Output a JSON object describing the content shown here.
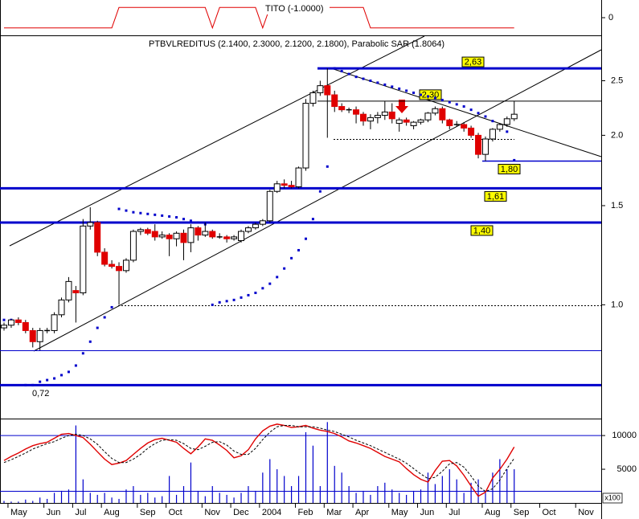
{
  "chart_data": [
    {
      "type": "line",
      "title": "TITO (-1.0000)",
      "ylim": [
        -1.5,
        1.5
      ],
      "yticks": [
        0
      ],
      "series": [
        {
          "color": "#e00000",
          "values": [
            -1,
            -1,
            -1,
            -1,
            -1,
            -1,
            -1,
            -1,
            -1,
            -1,
            -1,
            -1,
            -1,
            -1,
            -1,
            -1,
            1,
            1,
            1,
            1,
            1,
            1,
            1,
            1,
            1,
            1,
            1,
            1,
            1,
            -1,
            1,
            1,
            1,
            1,
            1,
            1,
            -1,
            1,
            1,
            1,
            1,
            1,
            1,
            1,
            1,
            1,
            1,
            1,
            1,
            1,
            1,
            -1,
            -1,
            -1,
            -1,
            -1,
            -1,
            -1,
            -1,
            -1,
            -1,
            -1,
            -1,
            -1,
            -1,
            -1,
            -1,
            -1,
            -1,
            -1,
            -1,
            -1,
            null,
            null,
            null,
            null,
            null,
            null,
            null,
            null,
            null,
            null,
            null,
            null,
            null
          ]
        }
      ]
    },
    {
      "type": "candlestick",
      "title": "PTBVLREDITUS (2.1400, 2.3000, 2.1200, 2.1800), Parabolic SAR (1.8064)",
      "log_scale": true,
      "ylim": [
        0.63,
        3.0
      ],
      "yticks": [
        2.5,
        {
          "value": 2,
          "label": "2.0"
        },
        1.5,
        {
          "value": 1,
          "label": "1.0"
        }
      ],
      "categories": [
        null,
        "May",
        null,
        null,
        null,
        null,
        "Jun",
        null,
        null,
        null,
        "Jul",
        null,
        null,
        null,
        "Aug",
        null,
        null,
        null,
        null,
        "Sep",
        null,
        null,
        null,
        "Oct",
        null,
        null,
        null,
        null,
        "Nov",
        null,
        null,
        null,
        "Dec",
        null,
        null,
        null,
        "2004",
        null,
        null,
        null,
        null,
        "Feb",
        null,
        null,
        null,
        "Mar",
        null,
        null,
        null,
        "Apr",
        null,
        null,
        null,
        null,
        "May",
        null,
        null,
        null,
        "Jun",
        null,
        null,
        null,
        "Jul",
        null,
        null,
        null,
        null,
        "Aug",
        null,
        null,
        null,
        "Sep",
        null,
        null,
        null,
        "Oct",
        null,
        null,
        null,
        null,
        "Nov",
        null,
        null,
        null,
        null
      ],
      "open": [
        0.91,
        0.92,
        0.94,
        0.93,
        0.9,
        0.86,
        0.9,
        0.9,
        0.96,
        1.02,
        1.06,
        1.05,
        1.38,
        1.4,
        1.24,
        1.18,
        1.17,
        1.15,
        1.2,
        1.35,
        1.36,
        1.35,
        1.32,
        1.33,
        1.31,
        1.34,
        1.29,
        1.37,
        1.33,
        1.35,
        1.32,
        1.32,
        1.31,
        1.3,
        1.35,
        1.37,
        1.39,
        1.41,
        1.59,
        1.64,
        1.63,
        1.62,
        1.75,
        2.28,
        2.38,
        2.45,
        2.36,
        2.25,
        2.22,
        2.22,
        2.18,
        2.12,
        2.15,
        2.17,
        2.2,
        2.1,
        2.13,
        2.08,
        2.11,
        2.13,
        2.19,
        2.23,
        2.13,
        2.09,
        2.09,
        2.06,
        2.0,
        1.85,
        1.97,
        2.05,
        2.09,
        2.14,
        null,
        null,
        null,
        null,
        null,
        null,
        null,
        null,
        null,
        null,
        null,
        null,
        null
      ],
      "high": [
        0.93,
        0.94,
        0.95,
        0.94,
        0.91,
        0.91,
        0.91,
        0.97,
        1.03,
        1.12,
        1.08,
        1.42,
        1.49,
        1.41,
        1.26,
        1.2,
        1.19,
        1.21,
        1.36,
        1.37,
        1.37,
        1.39,
        1.35,
        1.34,
        1.35,
        1.36,
        1.39,
        1.38,
        1.4,
        1.36,
        1.34,
        1.33,
        1.33,
        1.36,
        1.38,
        1.4,
        1.42,
        1.6,
        1.66,
        1.67,
        1.66,
        1.76,
        2.32,
        2.4,
        2.5,
        2.63,
        2.4,
        2.28,
        2.24,
        2.25,
        2.2,
        2.18,
        2.2,
        2.3,
        2.28,
        2.15,
        2.15,
        2.12,
        2.14,
        2.2,
        2.25,
        2.25,
        2.14,
        2.12,
        2.11,
        2.08,
        2.02,
        1.99,
        2.06,
        2.1,
        2.16,
        2.3,
        null,
        null,
        null,
        null,
        null,
        null,
        null,
        null,
        null,
        null,
        null,
        null,
        null
      ],
      "low": [
        0.9,
        0.91,
        0.92,
        0.89,
        0.84,
        0.83,
        0.89,
        0.89,
        0.95,
        1.01,
        0.93,
        1.04,
        1.36,
        1.22,
        1.17,
        1.16,
        1.0,
        1.14,
        1.19,
        1.33,
        1.33,
        1.3,
        1.31,
        1.22,
        1.27,
        1.2,
        1.24,
        1.3,
        1.32,
        1.31,
        1.31,
        1.29,
        1.3,
        1.29,
        1.34,
        1.36,
        1.38,
        1.4,
        1.58,
        1.61,
        1.61,
        1.61,
        1.73,
        2.25,
        2.35,
        1.98,
        2.2,
        2.2,
        2.19,
        2.1,
        2.08,
        2.05,
        2.1,
        2.13,
        2.1,
        2.03,
        2.08,
        2.05,
        2.09,
        2.11,
        2.17,
        2.1,
        2.05,
        2.07,
        2.03,
        1.98,
        1.82,
        1.8,
        1.95,
        2.03,
        2.07,
        2.12,
        null,
        null,
        null,
        null,
        null,
        null,
        null,
        null,
        null,
        null,
        null,
        null,
        null
      ],
      "close": [
        0.92,
        0.94,
        0.93,
        0.9,
        0.86,
        0.9,
        0.9,
        0.96,
        1.02,
        1.1,
        1.05,
        1.38,
        1.4,
        1.24,
        1.18,
        1.17,
        1.15,
        1.2,
        1.35,
        1.36,
        1.34,
        1.32,
        1.33,
        1.31,
        1.34,
        1.29,
        1.37,
        1.33,
        1.35,
        1.32,
        1.32,
        1.31,
        1.32,
        1.35,
        1.37,
        1.39,
        1.41,
        1.59,
        1.64,
        1.63,
        1.62,
        1.75,
        2.28,
        2.38,
        2.45,
        2.36,
        2.25,
        2.22,
        2.22,
        2.18,
        2.12,
        2.15,
        2.17,
        2.2,
        2.14,
        2.13,
        2.11,
        2.11,
        2.13,
        2.19,
        2.23,
        2.13,
        2.08,
        2.09,
        2.06,
        2.0,
        1.85,
        1.97,
        2.05,
        2.09,
        2.14,
        2.18,
        null,
        null,
        null,
        null,
        null,
        null,
        null,
        null,
        null,
        null,
        null,
        null,
        null
      ],
      "up_color": "#ffffff",
      "down_color": "#e00000",
      "sar": [
        0.94,
        0.94,
        null,
        0.72,
        0.72,
        0.73,
        0.735,
        0.74,
        0.75,
        0.76,
        0.78,
        0.82,
        0.86,
        0.91,
        0.95,
        0.99,
        1.48,
        1.47,
        1.46,
        1.455,
        1.45,
        1.445,
        1.44,
        1.435,
        1.43,
        1.42,
        1.41,
        1.4,
        1.39,
        1.0,
        1.01,
        1.015,
        1.02,
        1.03,
        1.04,
        1.05,
        1.07,
        1.09,
        1.12,
        1.16,
        1.21,
        1.25,
        1.31,
        1.42,
        1.59,
        1.76,
        2.63,
        2.6,
        2.57,
        2.54,
        2.52,
        2.5,
        2.48,
        2.46,
        2.44,
        2.42,
        2.4,
        2.38,
        2.36,
        2.345,
        2.33,
        2.31,
        2.29,
        2.27,
        2.25,
        2.22,
        2.19,
        2.16,
        2.12,
        2.07,
        2.03,
        1.8064,
        null,
        null,
        null,
        null,
        null,
        null,
        null,
        null,
        null,
        null,
        null,
        null,
        null
      ],
      "sar_color": "#0000cc",
      "levels": [
        {
          "value": 2.63,
          "label": "2,63"
        },
        {
          "value": 2.3,
          "label": "2,30"
        },
        {
          "value": 1.8,
          "label": "1,80"
        },
        {
          "value": 1.61,
          "label": "1,61"
        },
        {
          "value": 1.4,
          "label": "1,40"
        },
        {
          "value": 0.72,
          "label": "0,72"
        }
      ],
      "level_color": "#0000cc"
    },
    {
      "type": "volume",
      "ylim": [
        0,
        12400
      ],
      "yticks": [
        10000,
        5000
      ],
      "unit_label": "x100",
      "color": "#0000cc",
      "values": [
        300,
        200,
        200,
        500,
        300,
        800,
        600,
        1500,
        1800,
        2000,
        11500,
        3500,
        1500,
        1200,
        1500,
        800,
        600,
        2000,
        2500,
        1200,
        1500,
        800,
        1000,
        4000,
        1200,
        2500,
        6000,
        1800,
        1000,
        2500,
        1500,
        1200,
        800,
        1500,
        2500,
        1800,
        4500,
        6500,
        5000,
        4000,
        2500,
        4000,
        10500,
        8500,
        2500,
        12000,
        5500,
        4500,
        2500,
        1500,
        1800,
        1200,
        2500,
        3000,
        2000,
        1500,
        1200,
        1800,
        2000,
        4500,
        2800,
        4000,
        5000,
        3500,
        1500,
        3000,
        3500,
        1500,
        4500,
        6500,
        5000,
        5000,
        null,
        null,
        null,
        null,
        null,
        null,
        null,
        null,
        null,
        null,
        null,
        null,
        null
      ],
      "series": [
        {
          "color": "#e00000",
          "values": [
            6300,
            6900,
            7400,
            8000,
            8500,
            8800,
            9000,
            9600,
            10200,
            10300,
            10000,
            9700,
            8700,
            7600,
            6500,
            5700,
            5900,
            6300,
            7200,
            8100,
            8900,
            9400,
            9600,
            9300,
            9000,
            8100,
            7300,
            8300,
            9500,
            9300,
            8600,
            7800,
            6700,
            7000,
            7900,
            9500,
            10700,
            11400,
            11700,
            11500,
            11200,
            11300,
            11500,
            11100,
            10800,
            10600,
            10300,
            9800,
            9200,
            8900,
            8500,
            8100,
            7500,
            6900,
            6500,
            6100,
            5100,
            4200,
            3500,
            3100,
            4800,
            6200,
            6300,
            5500,
            4100,
            2500,
            1000,
            1600,
            3700,
            5000,
            6500,
            8300,
            null,
            null,
            null,
            null,
            null,
            null,
            null,
            null,
            null,
            null,
            null,
            null,
            null
          ]
        },
        {
          "color": "#000000",
          "dashed": true,
          "values": [
            6000,
            6400,
            6900,
            7400,
            8000,
            8400,
            8800,
            9100,
            9600,
            10000,
            10200,
            10000,
            9500,
            8700,
            7600,
            6600,
            6000,
            6000,
            6500,
            7200,
            8100,
            8800,
            9300,
            9400,
            9300,
            8800,
            8100,
            7900,
            8400,
            9000,
            9100,
            8600,
            7700,
            7200,
            7200,
            8100,
            9400,
            10500,
            11300,
            11500,
            11500,
            11300,
            11300,
            11300,
            11100,
            10800,
            10600,
            10200,
            9800,
            9300,
            8900,
            8500,
            8000,
            7500,
            7000,
            6500,
            5900,
            5100,
            4300,
            3600,
            3800,
            4700,
            5800,
            6000,
            5300,
            4000,
            2500,
            1700,
            2100,
            3400,
            5100,
            6600,
            null,
            null,
            null,
            null,
            null,
            null,
            null,
            null,
            null,
            null,
            null,
            null,
            null
          ]
        }
      ]
    }
  ]
}
